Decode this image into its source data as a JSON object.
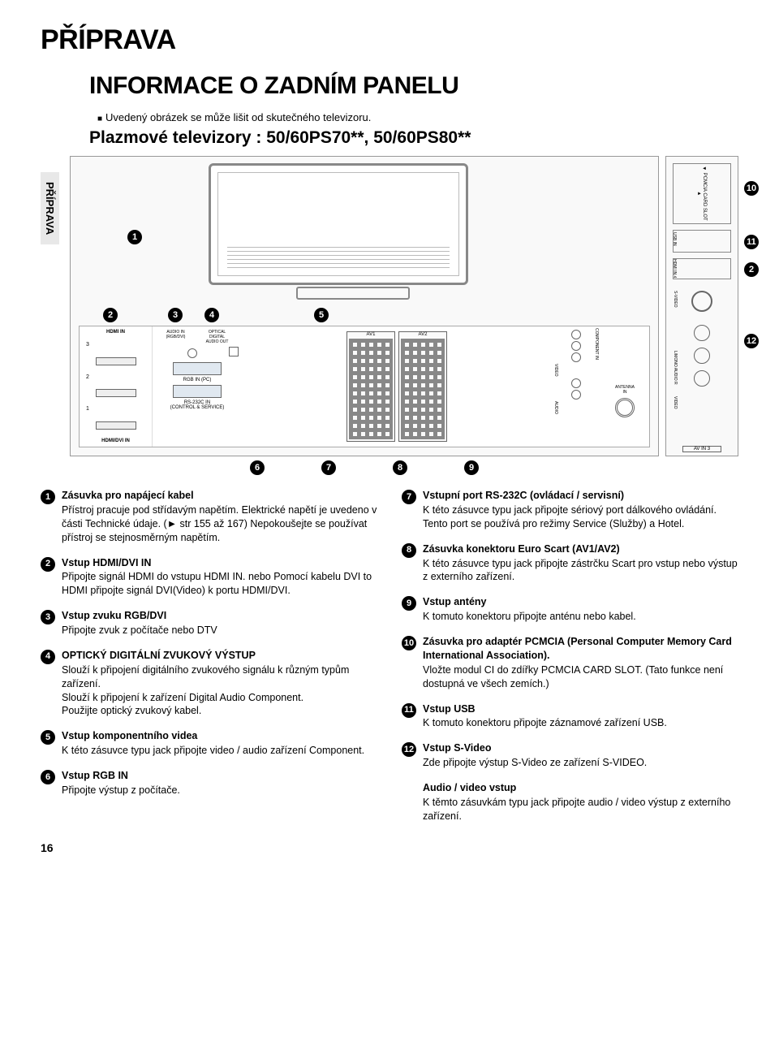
{
  "chapter": "PŘÍPRAVA",
  "section": "INFORMACE O  ZADNÍM PANELU",
  "note": "Uvedený obrázek se může lišit od skutečného televizoru.",
  "models": "Plazmové televizory : 50/60PS70**, 50/60PS80**",
  "sidetab": "PŘÍPRAVA",
  "page_number": "16",
  "diagram": {
    "rear_labels": {
      "hdmi_in": "HDMI IN",
      "hdmi_dvi_in": "HDMI/DVI IN",
      "audio_in": "AUDIO IN\n(RGB/DVI)",
      "optical": "OPTICAL\nDIGITAL\nAUDIO OUT",
      "rgb_in": "RGB IN (PC)",
      "rs232c": "RS-232C IN\n(CONTROL & SERVICE)",
      "av1": "AV1",
      "av2": "AV2",
      "component_in": "COMPONENT IN",
      "antenna_in": "ANTENNA\nIN",
      "video": "VIDEO",
      "audio": "AUDIO",
      "nums": [
        "1",
        "2",
        "3"
      ]
    },
    "side_labels": {
      "pcmcia": "◄ PCMCIA CARD SLOT ►",
      "usb_in": "USB IN",
      "hdmi_in4": "HDMI IN 4",
      "svideo": "S-VIDEO",
      "lmono": "L/MONO AUDIO R",
      "video": "VIDEO",
      "av_in3": "AV IN 3"
    },
    "callouts": {
      "c1": "1",
      "c2": "2",
      "c3": "3",
      "c4": "4",
      "c5": "5",
      "c6": "6",
      "c7": "7",
      "c8": "8",
      "c9": "9",
      "c10": "10",
      "c11": "11",
      "c12": "12"
    }
  },
  "items_left": [
    {
      "n": "1",
      "title": "Zásuvka pro napájecí kabel",
      "text": "Přístroj pracuje pod střídavým napětím. Elektrické napětí je uvedeno v části Technické údaje. (► str 155 až 167) Nepokoušejte se používat přístroj se stejnosměrným napětím."
    },
    {
      "n": "2",
      "title": "Vstup HDMI/DVI IN",
      "text": "Připojte signál HDMI do vstupu HDMI IN. nebo Pomocí kabelu DVI to HDMI připojte signál DVI(Video) k portu HDMI/DVI."
    },
    {
      "n": "3",
      "title": "Vstup zvuku RGB/DVI",
      "text": "Připojte zvuk z počítače nebo DTV"
    },
    {
      "n": "4",
      "title": "OPTICKÝ DIGITÁLNÍ ZVUKOVÝ VÝSTUP",
      "text": "Slouží k připojení digitálního zvukového signálu k různým typům zařízení.\nSlouží k připojení k  zařízení Digital Audio Component.\nPoužijte optický zvukový kabel."
    },
    {
      "n": "5",
      "title": "Vstup komponentního videa",
      "text": "K této zásuvce typu jack připojte video / audio zařízení Component."
    },
    {
      "n": "6",
      "title": "Vstup RGB IN",
      "text": "Připojte výstup z počítače."
    }
  ],
  "items_right": [
    {
      "n": "7",
      "title": "Vstupní port RS-232C (ovládací / servisní)",
      "text": "K této zásuvce typu jack připojte sériový port dálkového ovládání.\nTento port se používá pro režimy Service (Služby) a Hotel."
    },
    {
      "n": "8",
      "title": "Zásuvka konektoru Euro Scart (AV1/AV2)",
      "text": "K této zásuvce typu jack připojte zástrčku Scart pro vstup nebo výstup z  externího zařízení."
    },
    {
      "n": "9",
      "title": "Vstup antény",
      "text": "K  tomuto konektoru připojte anténu nebo kabel."
    },
    {
      "n": "10",
      "title": "Zásuvka pro adaptér PCMCIA (Personal Computer Memory Card International Association).",
      "text": "Vložte modul CI do zdířky PCMCIA CARD SLOT. (Tato funkce není dostupná ve všech zemích.)"
    },
    {
      "n": "11",
      "title": "Vstup USB",
      "text": "K  tomuto konektoru připojte záznamové zařízení USB."
    },
    {
      "n": "12",
      "title": "Vstup S-Video",
      "text": "Zde připojte výstup S-Video ze zařízení S-VIDEO."
    },
    {
      "n": "",
      "title": "Audio / video vstup",
      "text": "K těmto zásuvkám typu jack připojte audio / video výstup z  externího zařízení."
    }
  ]
}
